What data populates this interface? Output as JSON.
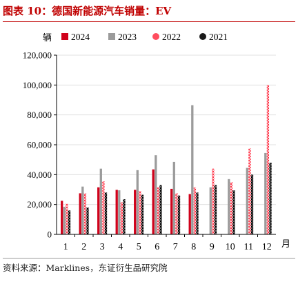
{
  "header": {
    "title": "图表 10：德国新能源汽车销量：EV"
  },
  "footer": {
    "source": "资料来源：Marklines，东证衍生品研究院"
  },
  "chart_data": {
    "type": "bar",
    "ylabel": "辆",
    "xlabel": "月",
    "categories": [
      "1",
      "2",
      "3",
      "4",
      "5",
      "6",
      "7",
      "8",
      "9",
      "10",
      "11",
      "12"
    ],
    "ylim": [
      0,
      120000
    ],
    "y_ticks": [
      "0",
      "20,000",
      "40,000",
      "60,000",
      "80,000",
      "100,000",
      "120,000"
    ],
    "grid": "horizontal",
    "legend_position": "top",
    "series": [
      {
        "name": "2024",
        "color": "#d0021b",
        "pattern": "solid",
        "values": [
          22500,
          27500,
          31500,
          29800,
          29800,
          43500,
          30500,
          27000,
          null,
          null,
          null,
          null
        ]
      },
      {
        "name": "2023",
        "color": "#9b9b9b",
        "pattern": "solid",
        "values": [
          18500,
          32000,
          44000,
          29500,
          43000,
          53000,
          48500,
          86500,
          31500,
          37000,
          44500,
          54500
        ]
      },
      {
        "name": "2022",
        "color": "#ff4d5e",
        "pattern": "dotted",
        "values": [
          20500,
          27500,
          35500,
          21500,
          29000,
          31500,
          27500,
          31500,
          44000,
          35000,
          57500,
          100000
        ]
      },
      {
        "name": "2021",
        "color": "#1a1a1a",
        "pattern": "dotted",
        "values": [
          16000,
          18000,
          28000,
          23500,
          26500,
          33000,
          26000,
          28000,
          33000,
          29500,
          40000,
          48000
        ]
      }
    ]
  }
}
